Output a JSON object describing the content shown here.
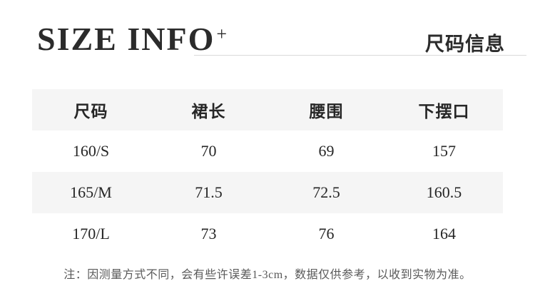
{
  "header": {
    "title_en": "SIZE INFO",
    "title_plus": "+",
    "title_cn": "尺码信息"
  },
  "table": {
    "columns": [
      "尺码",
      "裙长",
      "腰围",
      "下摆口"
    ],
    "rows": [
      [
        "160/S",
        "70",
        "69",
        "157"
      ],
      [
        "165/M",
        "71.5",
        "72.5",
        "160.5"
      ],
      [
        "170/L",
        "73",
        "76",
        "164"
      ]
    ]
  },
  "note": "注：因测量方式不同，会有些许误差1-3cm，数据仅供参考，以收到实物为准。",
  "colors": {
    "band": "#f5f5f5",
    "rule": "#d9d9d9",
    "title": "#2b2b2b",
    "text": "#262626",
    "note": "#595959",
    "bg": "#ffffff"
  }
}
